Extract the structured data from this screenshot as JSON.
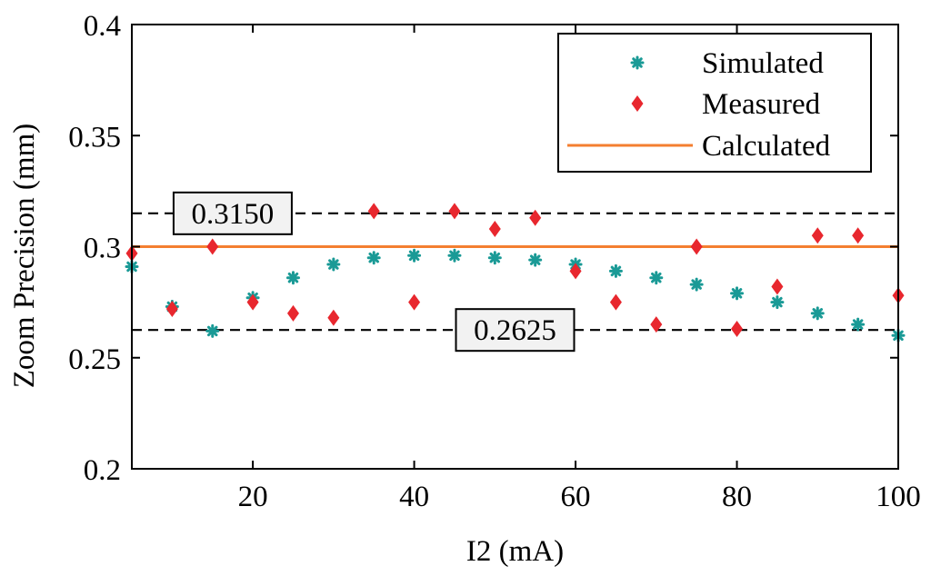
{
  "chart_data": {
    "type": "scatter",
    "title": "",
    "xlabel": "I2 (mA)",
    "ylabel": "Zoom Precision (mm)",
    "xlim": [
      5,
      100
    ],
    "ylim": [
      0.2,
      0.4
    ],
    "xticks": [
      20,
      40,
      60,
      80,
      100
    ],
    "xtick_labels": [
      "20",
      "40",
      "60",
      "80",
      "100"
    ],
    "yticks": [
      0.2,
      0.25,
      0.3,
      0.35,
      0.4
    ],
    "ytick_labels": [
      "0.2",
      "0.25",
      "0.3",
      "0.35",
      "0.4"
    ],
    "grid": false,
    "legend_position": "top-right",
    "series": [
      {
        "name": "Simulated",
        "marker": "asterisk",
        "color": "#1a9a96",
        "x": [
          5,
          10,
          15,
          20,
          25,
          30,
          35,
          40,
          45,
          50,
          55,
          60,
          65,
          70,
          75,
          80,
          85,
          90,
          95,
          100
        ],
        "y": [
          0.291,
          0.273,
          0.262,
          0.277,
          0.286,
          0.292,
          0.295,
          0.296,
          0.296,
          0.295,
          0.294,
          0.292,
          0.289,
          0.286,
          0.283,
          0.279,
          0.275,
          0.27,
          0.265,
          0.26
        ]
      },
      {
        "name": "Measured",
        "marker": "diamond",
        "color": "#e8272e",
        "x": [
          5,
          10,
          15,
          20,
          25,
          30,
          35,
          40,
          45,
          50,
          55,
          60,
          65,
          70,
          75,
          80,
          85,
          90,
          95,
          100
        ],
        "y": [
          0.297,
          0.272,
          0.3,
          0.275,
          0.27,
          0.268,
          0.316,
          0.275,
          0.316,
          0.308,
          0.313,
          0.289,
          0.275,
          0.265,
          0.3,
          0.263,
          0.282,
          0.305,
          0.305,
          0.278
        ]
      },
      {
        "name": "Calculated",
        "marker": "line",
        "color": "#f47f30",
        "x": [
          5,
          100
        ],
        "y": [
          0.3,
          0.3
        ]
      }
    ],
    "reference_lines": [
      {
        "y": 0.315,
        "label": "0.3150",
        "label_x": 17.5,
        "style": "dashed"
      },
      {
        "y": 0.2625,
        "label": "0.2625",
        "label_x": 52.5,
        "style": "dashed"
      }
    ]
  }
}
